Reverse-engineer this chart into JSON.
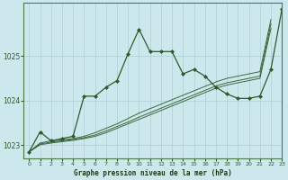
{
  "title": "Graphe pression niveau de la mer (hPa)",
  "bg_color": "#cce8ec",
  "grid_color": "#b0d4d8",
  "line_color": "#2d5a2d",
  "xlim": [
    -0.5,
    23
  ],
  "ylim": [
    1022.7,
    1026.2
  ],
  "yticks": [
    1023,
    1024,
    1025
  ],
  "xticks": [
    0,
    1,
    2,
    3,
    4,
    5,
    6,
    7,
    8,
    9,
    10,
    11,
    12,
    13,
    14,
    15,
    16,
    17,
    18,
    19,
    20,
    21,
    22,
    23
  ],
  "series": {
    "main": [
      1022.85,
      1023.3,
      1023.1,
      1023.15,
      1023.2,
      1024.1,
      1024.1,
      1024.3,
      1024.45,
      1025.05,
      1025.6,
      1025.1,
      1025.1,
      1025.1,
      1024.6,
      1024.7,
      1024.55,
      1024.3,
      1024.15,
      1024.05,
      1024.05,
      1024.1,
      1024.7,
      1026.05
    ],
    "smooth1": [
      1022.85,
      1023.05,
      1023.1,
      1023.12,
      1023.15,
      1023.2,
      1023.28,
      1023.38,
      1023.48,
      1023.6,
      1023.72,
      1023.82,
      1023.92,
      1024.02,
      1024.12,
      1024.22,
      1024.32,
      1024.42,
      1024.5,
      1024.55,
      1024.6,
      1024.65,
      1025.82,
      null
    ],
    "smooth2": [
      1022.85,
      1023.03,
      1023.07,
      1023.1,
      1023.13,
      1023.17,
      1023.23,
      1023.32,
      1023.42,
      1023.52,
      1023.63,
      1023.73,
      1023.83,
      1023.93,
      1024.03,
      1024.13,
      1024.23,
      1024.33,
      1024.4,
      1024.45,
      1024.5,
      1024.55,
      1025.72,
      null
    ],
    "smooth3": [
      1022.85,
      1023.01,
      1023.05,
      1023.08,
      1023.11,
      1023.15,
      1023.2,
      1023.28,
      1023.38,
      1023.48,
      1023.58,
      1023.68,
      1023.78,
      1023.88,
      1023.98,
      1024.08,
      1024.18,
      1024.28,
      1024.35,
      1024.4,
      1024.45,
      1024.5,
      1025.62,
      null
    ]
  }
}
